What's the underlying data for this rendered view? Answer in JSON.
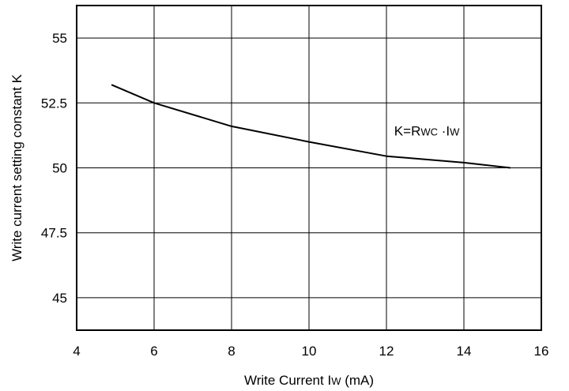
{
  "chart_data": {
    "type": "line",
    "title": "",
    "xlabel": {
      "prefix": "Write Current I",
      "sub": "W",
      "suffix": " (mA)"
    },
    "ylabel": "Write current setting constant K",
    "xlim": [
      4,
      16
    ],
    "ylim": [
      43.75,
      56.25
    ],
    "x_ticks": [
      4,
      6,
      8,
      10,
      12,
      14,
      16
    ],
    "x_tick_labels": [
      "4",
      "6",
      "8",
      "10",
      "12",
      "14",
      "16"
    ],
    "y_ticks": [
      45,
      47.5,
      50,
      52.5,
      55
    ],
    "y_tick_labels": [
      "45",
      "47.5",
      "50",
      "52.5",
      "55"
    ],
    "grid": true,
    "series": [
      {
        "x": [
          4.9,
          6,
          8,
          10,
          12,
          14,
          15.2
        ],
        "y": [
          53.2,
          52.5,
          51.6,
          51.0,
          50.45,
          50.2,
          50.0
        ]
      }
    ],
    "annotation": {
      "x": 12.2,
      "y": 51.25,
      "parts": [
        {
          "text": "K=R",
          "sub": false
        },
        {
          "text": "WC",
          "sub": true
        },
        {
          "text": " ·I",
          "sub": false
        },
        {
          "text": "W",
          "sub": true
        }
      ]
    }
  }
}
